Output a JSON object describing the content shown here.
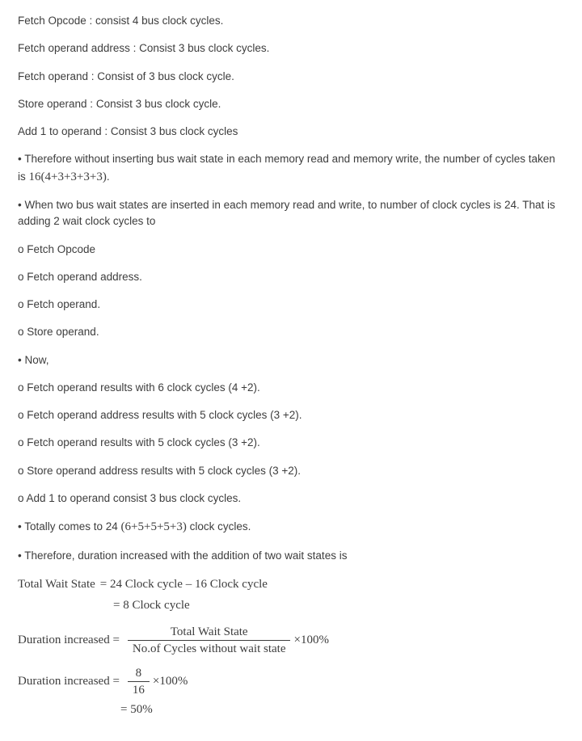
{
  "lines": {
    "l1": "Fetch Opcode : consist 4 bus clock cycles.",
    "l2": "Fetch operand address : Consist 3 bus clock cycles.",
    "l3": "Fetch operand : Consist of 3 bus clock cycle.",
    "l4": "Store operand : Consist 3 bus clock cycle.",
    "l5": "Add 1 to operand : Consist 3 bus clock cycles",
    "l6a": "• Therefore without inserting bus wait state in each memory read and memory write, the number of cycles taken is ",
    "l6b": "16(4+3+3+3+3)",
    "l6c": ".",
    "l7": "• When two bus wait states are inserted in each memory read and write, to number of clock cycles is 24. That is adding 2 wait clock cycles to",
    "l8": "o Fetch Opcode",
    "l9": "o Fetch operand address.",
    "l10": "o Fetch operand.",
    "l11": "o Store operand.",
    "l12": "• Now,",
    "l13": "o Fetch operand results with 6 clock cycles (4 +2).",
    "l14": "o Fetch operand address results with 5 clock cycles (3 +2).",
    "l15": "o Fetch operand results with 5 clock cycles (3 +2).",
    "l16": "o Store operand address results with 5 clock cycles (3 +2).",
    "l17": "o Add 1 to operand consist 3 bus clock cycles.",
    "l18a": "• Totally comes to 24 ",
    "l18b": " (6+5+5+5+3)",
    "l18c": " clock cycles.",
    "l19": "• Therefore, duration increased with the addition of two wait states is"
  },
  "calc": {
    "tws_label": "Total Wait State",
    "tws_eq": " = 24 Clock cycle –  16 Clock cycle",
    "tws_res": "= 8 Clock cycle",
    "di_label": "Duration increased = ",
    "frac1_num": "Total Wait State",
    "frac1_den": "No.of Cycles without wait state",
    "times100": "×100%",
    "frac2_num": "8",
    "frac2_den": "16",
    "res50": "= 50%"
  }
}
